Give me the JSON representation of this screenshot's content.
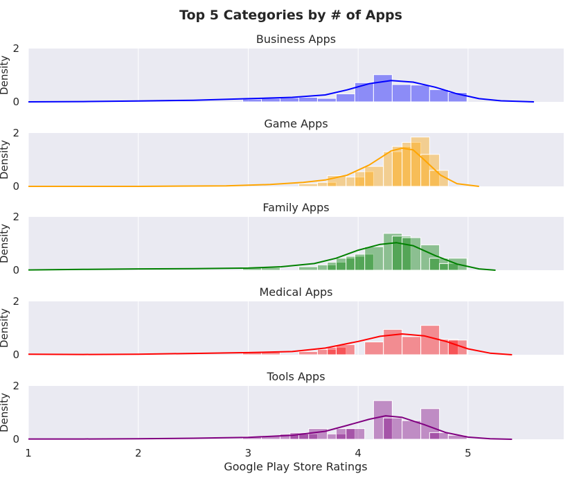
{
  "chart_data": {
    "type": "histogram-kde",
    "title": "Top 5 Categories by # of Apps",
    "xlabel": "Google Play Store Ratings",
    "ylabel": "Density",
    "xlim": [
      1.0,
      5.87
    ],
    "ylim": [
      0,
      2
    ],
    "x_ticks": [
      "1",
      "2",
      "3",
      "4",
      "5"
    ],
    "y_ticks": [
      "0",
      "2"
    ],
    "grid": true,
    "bin_width": 0.17,
    "panels": [
      {
        "name": "Business Apps",
        "color": "#0000ff",
        "bars": [
          [
            2.95,
            0.1
          ],
          [
            3.12,
            0.13
          ],
          [
            3.29,
            0.15
          ],
          [
            3.46,
            0.17
          ],
          [
            3.63,
            0.13
          ],
          [
            3.8,
            0.3
          ],
          [
            3.97,
            0.72
          ],
          [
            4.14,
            1.02
          ],
          [
            4.31,
            0.65
          ],
          [
            4.48,
            0.63
          ],
          [
            4.65,
            0.46
          ],
          [
            4.82,
            0.35
          ]
        ],
        "kde": [
          [
            1.0,
            0.0
          ],
          [
            1.5,
            0.01
          ],
          [
            2.0,
            0.03
          ],
          [
            2.5,
            0.06
          ],
          [
            3.0,
            0.12
          ],
          [
            3.4,
            0.17
          ],
          [
            3.7,
            0.26
          ],
          [
            3.9,
            0.45
          ],
          [
            4.1,
            0.68
          ],
          [
            4.3,
            0.8
          ],
          [
            4.5,
            0.74
          ],
          [
            4.7,
            0.55
          ],
          [
            4.9,
            0.3
          ],
          [
            5.1,
            0.12
          ],
          [
            5.3,
            0.04
          ],
          [
            5.6,
            0.0
          ]
        ]
      },
      {
        "name": "Game Apps",
        "color": "#ffa500",
        "bars": [
          [
            3.46,
            0.1
          ],
          [
            3.63,
            0.15
          ],
          [
            3.72,
            0.4
          ],
          [
            3.89,
            0.35
          ],
          [
            3.97,
            0.55
          ],
          [
            4.06,
            0.75
          ],
          [
            4.23,
            1.3
          ],
          [
            4.31,
            1.5
          ],
          [
            4.4,
            1.65
          ],
          [
            4.48,
            1.85
          ],
          [
            4.57,
            1.2
          ],
          [
            4.65,
            0.6
          ]
        ],
        "kde": [
          [
            1.0,
            0.0
          ],
          [
            2.0,
            0.0
          ],
          [
            2.8,
            0.02
          ],
          [
            3.2,
            0.07
          ],
          [
            3.5,
            0.15
          ],
          [
            3.7,
            0.24
          ],
          [
            3.9,
            0.42
          ],
          [
            4.1,
            0.8
          ],
          [
            4.3,
            1.33
          ],
          [
            4.4,
            1.43
          ],
          [
            4.5,
            1.37
          ],
          [
            4.6,
            1.0
          ],
          [
            4.75,
            0.42
          ],
          [
            4.9,
            0.1
          ],
          [
            5.1,
            0.0
          ]
        ]
      },
      {
        "name": "Family Apps",
        "color": "#008000",
        "bars": [
          [
            2.95,
            0.1
          ],
          [
            3.12,
            0.1
          ],
          [
            3.46,
            0.13
          ],
          [
            3.63,
            0.2
          ],
          [
            3.72,
            0.3
          ],
          [
            3.8,
            0.45
          ],
          [
            3.89,
            0.52
          ],
          [
            3.97,
            0.6
          ],
          [
            4.06,
            0.88
          ],
          [
            4.23,
            1.38
          ],
          [
            4.31,
            1.28
          ],
          [
            4.4,
            1.22
          ],
          [
            4.57,
            0.95
          ],
          [
            4.65,
            0.45
          ],
          [
            4.74,
            0.25
          ],
          [
            4.82,
            0.45
          ]
        ],
        "kde": [
          [
            1.0,
            0.01
          ],
          [
            1.5,
            0.03
          ],
          [
            2.0,
            0.05
          ],
          [
            2.5,
            0.06
          ],
          [
            3.0,
            0.08
          ],
          [
            3.3,
            0.13
          ],
          [
            3.6,
            0.25
          ],
          [
            3.8,
            0.45
          ],
          [
            4.0,
            0.75
          ],
          [
            4.2,
            0.97
          ],
          [
            4.35,
            1.03
          ],
          [
            4.5,
            0.92
          ],
          [
            4.7,
            0.55
          ],
          [
            4.9,
            0.23
          ],
          [
            5.1,
            0.05
          ],
          [
            5.25,
            0.0
          ]
        ]
      },
      {
        "name": "Medical Apps",
        "color": "#ff0000",
        "bars": [
          [
            2.95,
            0.1
          ],
          [
            3.12,
            0.1
          ],
          [
            3.46,
            0.12
          ],
          [
            3.63,
            0.2
          ],
          [
            3.72,
            0.28
          ],
          [
            3.8,
            0.38
          ],
          [
            4.06,
            0.48
          ],
          [
            4.23,
            0.95
          ],
          [
            4.4,
            0.68
          ],
          [
            4.57,
            1.1
          ],
          [
            4.74,
            0.58
          ],
          [
            4.82,
            0.55
          ]
        ],
        "kde": [
          [
            1.0,
            0.02
          ],
          [
            1.5,
            0.01
          ],
          [
            2.0,
            0.02
          ],
          [
            2.5,
            0.05
          ],
          [
            3.0,
            0.08
          ],
          [
            3.4,
            0.12
          ],
          [
            3.7,
            0.25
          ],
          [
            4.0,
            0.5
          ],
          [
            4.2,
            0.69
          ],
          [
            4.4,
            0.78
          ],
          [
            4.6,
            0.71
          ],
          [
            4.8,
            0.5
          ],
          [
            5.0,
            0.22
          ],
          [
            5.2,
            0.06
          ],
          [
            5.4,
            0.0
          ]
        ]
      },
      {
        "name": "Tools Apps",
        "color": "#800080",
        "bars": [
          [
            2.95,
            0.1
          ],
          [
            3.12,
            0.12
          ],
          [
            3.29,
            0.2
          ],
          [
            3.38,
            0.25
          ],
          [
            3.46,
            0.2
          ],
          [
            3.55,
            0.4
          ],
          [
            3.72,
            0.2
          ],
          [
            3.8,
            0.4
          ],
          [
            3.89,
            0.4
          ],
          [
            4.14,
            1.45
          ],
          [
            4.23,
            0.8
          ],
          [
            4.4,
            0.7
          ],
          [
            4.57,
            1.15
          ],
          [
            4.65,
            0.25
          ],
          [
            4.82,
            0.15
          ]
        ],
        "kde": [
          [
            1.0,
            0.01
          ],
          [
            1.5,
            0.01
          ],
          [
            2.0,
            0.02
          ],
          [
            2.5,
            0.04
          ],
          [
            3.0,
            0.07
          ],
          [
            3.4,
            0.15
          ],
          [
            3.7,
            0.3
          ],
          [
            3.9,
            0.52
          ],
          [
            4.1,
            0.75
          ],
          [
            4.25,
            0.88
          ],
          [
            4.4,
            0.82
          ],
          [
            4.6,
            0.55
          ],
          [
            4.8,
            0.25
          ],
          [
            5.0,
            0.08
          ],
          [
            5.2,
            0.02
          ],
          [
            5.4,
            0.0
          ]
        ]
      }
    ]
  }
}
